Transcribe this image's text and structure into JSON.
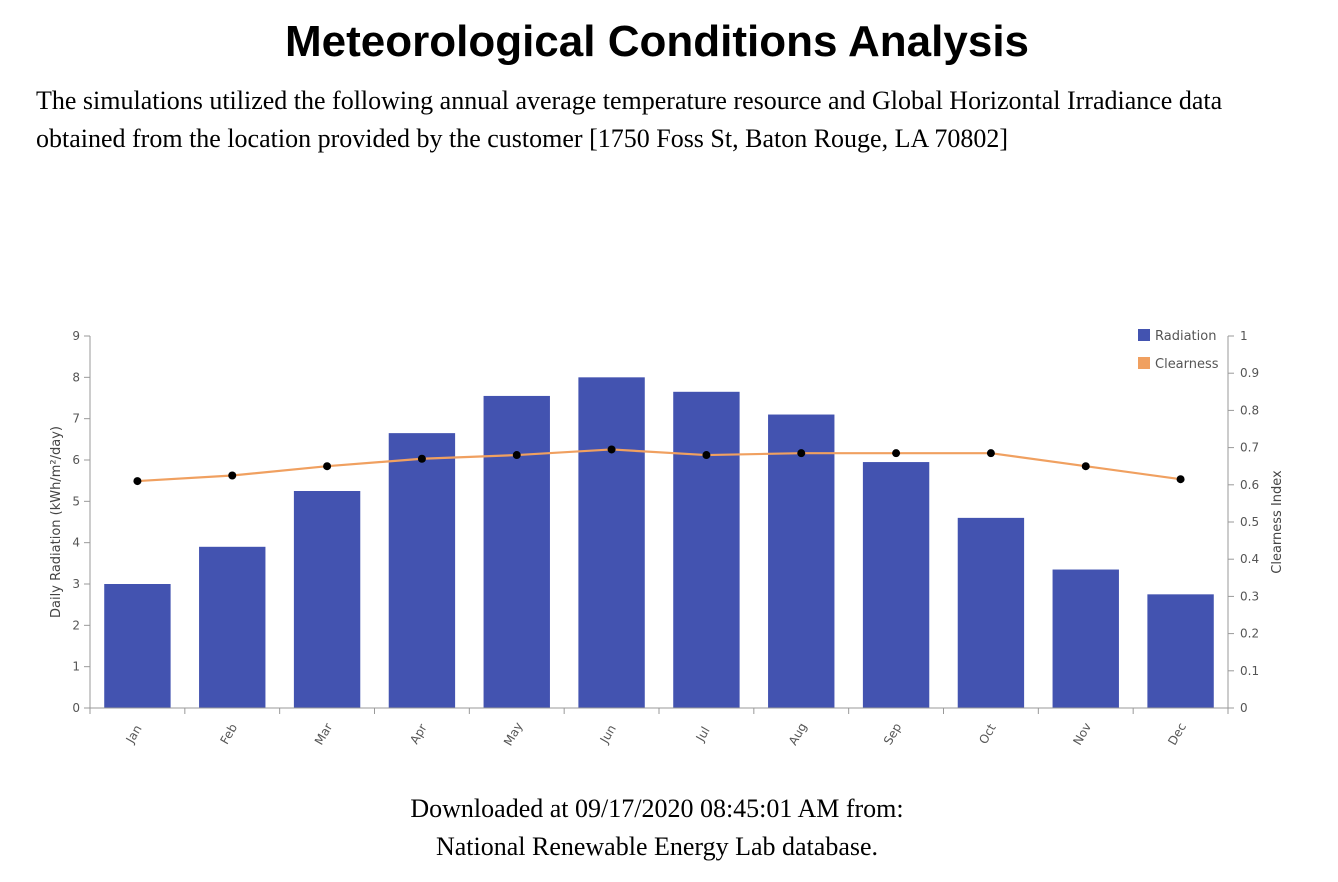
{
  "page": {
    "title": "Meteorological Conditions Analysis",
    "intro": "The simulations utilized the following annual average temperature resource and Global Horizontal Irradiance data obtained from the location provided by the customer [1750 Foss St, Baton Rouge, LA 70802]",
    "footer_line1": "Downloaded at 09/17/2020 08:45:01 AM from:",
    "footer_line2": "National Renewable Energy Lab database."
  },
  "chart_data": {
    "type": "bar",
    "categories": [
      "Jan",
      "Feb",
      "Mar",
      "Apr",
      "May",
      "Jun",
      "Jul",
      "Aug",
      "Sep",
      "Oct",
      "Nov",
      "Dec"
    ],
    "series": [
      {
        "name": "Radiation",
        "type": "bar",
        "axis": "left",
        "color": "#4353b0",
        "values": [
          3.0,
          3.9,
          5.25,
          6.65,
          7.55,
          8.0,
          7.65,
          7.1,
          5.95,
          4.6,
          3.35,
          2.75
        ]
      },
      {
        "name": "Clearness",
        "type": "line",
        "axis": "right",
        "color": "#f0a060",
        "marker_color": "#000000",
        "values": [
          0.61,
          0.625,
          0.65,
          0.67,
          0.68,
          0.695,
          0.68,
          0.685,
          0.685,
          0.685,
          0.65,
          0.615
        ]
      }
    ],
    "ylabel": "Daily Radiation (kWh/m²/day)",
    "ylim": [
      0,
      9
    ],
    "yticks": [
      "0",
      "1",
      "2",
      "3",
      "4",
      "5",
      "6",
      "7",
      "8",
      "9"
    ],
    "y2label": "Clearness Index",
    "y2lim": [
      0,
      1
    ],
    "y2ticks": [
      "0",
      "0.1",
      "0.2",
      "0.3",
      "0.4",
      "0.5",
      "0.6",
      "0.7",
      "0.8",
      "0.9",
      "1"
    ],
    "grid": false,
    "legend": "top-right"
  }
}
